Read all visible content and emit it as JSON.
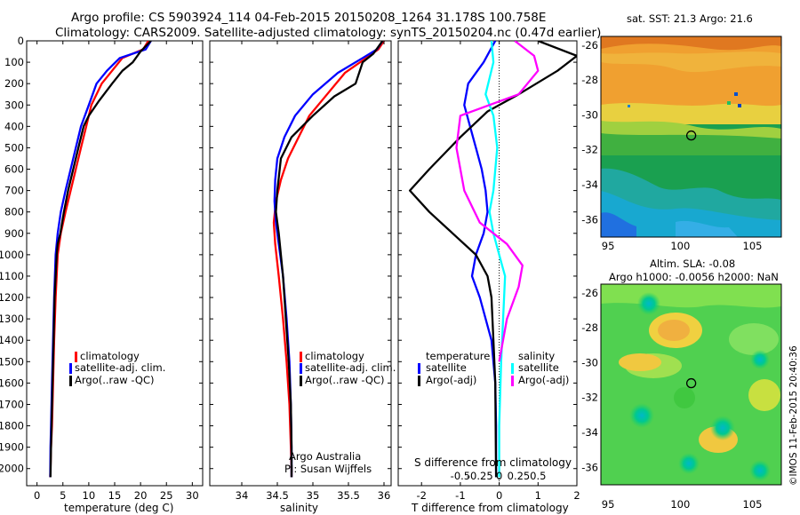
{
  "header": {
    "title_line1": "Argo profile: CS 5903924_114 04-Feb-2015 20150208_1264 31.178S 100.758E",
    "title_line2": "Climatology: CARS2009. Satellite-adjusted climatology: synTS_20150204.nc (0.47d earlier)"
  },
  "colors": {
    "climatology": "#ff0000",
    "satellite": "#0000ff",
    "argo": "#000000",
    "satellite_salinity": "#00ffff",
    "argo_salinity_diff": "#ff00ff"
  },
  "chart_data": [
    {
      "type": "line",
      "id": "temperature",
      "xlabel": "temperature (deg C)",
      "ylabel": "",
      "xlim": [
        -2,
        32
      ],
      "ylim": [
        2080,
        0
      ],
      "xticks": [
        0,
        5,
        10,
        15,
        20,
        25,
        30
      ],
      "yticks": [
        0,
        100,
        200,
        300,
        400,
        500,
        600,
        700,
        800,
        900,
        1000,
        1100,
        1200,
        1300,
        1400,
        1500,
        1600,
        1700,
        1800,
        1900,
        2000
      ],
      "legend": [
        "climatology",
        "satellite-adj. clim.",
        "Argo(..raw -QC)"
      ],
      "series": [
        {
          "name": "climatology",
          "color": "#ff0000",
          "x": [
            21.5,
            20.5,
            16.5,
            14.5,
            12.5,
            10.5,
            9.5,
            8.5,
            7.5,
            6.5,
            5.5,
            4.6,
            4.0,
            3.6,
            3.3,
            3.1,
            2.9,
            2.7,
            2.6,
            2.55
          ],
          "y": [
            0,
            40,
            80,
            140,
            200,
            300,
            400,
            500,
            600,
            700,
            800,
            900,
            1000,
            1200,
            1400,
            1600,
            1800,
            1900,
            2000,
            2040
          ]
        },
        {
          "name": "satellite-adj. clim.",
          "color": "#0000ff",
          "x": [
            22.0,
            21.0,
            16.0,
            13.5,
            11.5,
            10.0,
            8.5,
            7.5,
            6.5,
            5.5,
            4.6,
            4.0,
            3.6,
            3.3,
            3.1,
            2.9,
            2.7,
            2.6,
            2.55
          ],
          "y": [
            0,
            40,
            80,
            140,
            200,
            300,
            400,
            500,
            600,
            700,
            800,
            900,
            1000,
            1200,
            1400,
            1600,
            1800,
            1900,
            2040
          ]
        },
        {
          "name": "Argo(..raw -QC)",
          "color": "#000000",
          "x": [
            22.0,
            20.0,
            18.5,
            16.5,
            14.5,
            12.0,
            10.0,
            9.0,
            8.0,
            7.0,
            6.0,
            5.2,
            4.5,
            4.0,
            3.8,
            3.6,
            3.4,
            3.2,
            3.0,
            2.8,
            2.7,
            2.6
          ],
          "y": [
            0,
            50,
            100,
            140,
            200,
            280,
            350,
            400,
            500,
            600,
            700,
            800,
            900,
            950,
            1000,
            1100,
            1200,
            1400,
            1600,
            1800,
            1900,
            2040
          ]
        }
      ]
    },
    {
      "type": "line",
      "id": "salinity",
      "xlabel": "salinity",
      "ylabel": "",
      "xlim": [
        33.55,
        36.1
      ],
      "ylim": [
        2080,
        0
      ],
      "xticks": [
        34,
        34.5,
        35,
        35.5,
        36
      ],
      "legend": [
        "climatology",
        "satellite-adj. clim.",
        "Argo(..raw -QC)"
      ],
      "annotations": [
        "Argo Australia",
        "PI: Susan Wijffels"
      ],
      "series": [
        {
          "name": "climatology",
          "color": "#ff0000",
          "x": [
            36.0,
            35.92,
            35.75,
            35.45,
            35.2,
            34.95,
            34.8,
            34.65,
            34.55,
            34.48,
            34.45,
            34.47,
            34.52,
            34.58,
            34.63,
            34.67,
            34.69,
            34.7,
            34.7
          ],
          "y": [
            0,
            40,
            80,
            150,
            250,
            350,
            450,
            550,
            650,
            750,
            850,
            950,
            1100,
            1300,
            1500,
            1700,
            1900,
            2000,
            2040
          ]
        },
        {
          "name": "satellite-adj. clim.",
          "color": "#0000ff",
          "x": [
            35.98,
            35.9,
            35.7,
            35.35,
            35.0,
            34.75,
            34.6,
            34.5,
            34.47,
            34.46,
            34.48,
            34.52,
            34.58,
            34.63,
            34.67,
            34.69,
            34.7,
            34.7
          ],
          "y": [
            0,
            40,
            80,
            150,
            250,
            350,
            450,
            550,
            650,
            750,
            850,
            950,
            1100,
            1300,
            1500,
            1700,
            1900,
            2040
          ]
        },
        {
          "name": "Argo(..raw -QC)",
          "color": "#000000",
          "x": [
            35.98,
            35.85,
            35.7,
            35.6,
            35.3,
            35.0,
            34.7,
            34.55,
            34.5,
            34.48,
            34.52,
            34.55,
            34.58,
            34.62,
            34.66,
            34.69,
            34.7,
            34.7
          ],
          "y": [
            0,
            60,
            100,
            200,
            260,
            350,
            450,
            550,
            700,
            800,
            900,
            1000,
            1100,
            1300,
            1500,
            1700,
            1900,
            2040
          ]
        }
      ]
    },
    {
      "type": "line",
      "id": "differences",
      "xlabel": "T difference from climatology",
      "secondary_xlabel": "S difference from climatology",
      "xlim": [
        -2.6,
        2.0
      ],
      "ylim": [
        2080,
        0
      ],
      "xticks": [
        -2,
        -1,
        0,
        1,
        2
      ],
      "secondary_xticks": [
        "-0.5",
        "-0.25",
        "0",
        "0.25",
        "0.5"
      ],
      "legend": {
        "temperature_header": "temperature",
        "salinity_header": "salinity",
        "entries": [
          "satellite",
          "Argo(-adj)",
          "satellite",
          "Argo(-adj)"
        ]
      },
      "series": [
        {
          "name": "temperature satellite",
          "color": "#0000ff",
          "x": [
            -0.1,
            -0.4,
            -0.8,
            -0.9,
            -0.75,
            -0.6,
            -0.45,
            -0.35,
            -0.3,
            -0.4,
            -0.6,
            -0.7,
            -0.5,
            -0.2,
            -0.1,
            -0.08,
            -0.08
          ],
          "y": [
            0,
            100,
            200,
            300,
            400,
            500,
            600,
            700,
            800,
            900,
            1000,
            1100,
            1200,
            1400,
            1600,
            1800,
            2040
          ]
        },
        {
          "name": "temperature Argo(-adj)",
          "color": "#000000",
          "x": [
            1.0,
            2.0,
            1.5,
            0.5,
            -0.3,
            -1.0,
            -1.8,
            -2.3,
            -1.8,
            -1.2,
            -0.6,
            -0.3,
            -0.2,
            -0.15,
            -0.1,
            -0.08
          ],
          "y": [
            0,
            70,
            140,
            250,
            330,
            450,
            600,
            700,
            800,
            900,
            1000,
            1100,
            1200,
            1400,
            1600,
            2040
          ]
        },
        {
          "name": "salinity satellite",
          "color": "#00ffff",
          "x": [
            -0.2,
            -0.15,
            -0.35,
            -0.15,
            -0.05,
            -0.15,
            -0.25,
            -0.15,
            0.0,
            0.15,
            0.1,
            0.05,
            0.0,
            0.0
          ],
          "y": [
            0,
            100,
            250,
            350,
            500,
            700,
            800,
            900,
            1000,
            1100,
            1300,
            1500,
            1800,
            2040
          ]
        },
        {
          "name": "salinity Argo(-adj)",
          "color": "#ff00ff",
          "x": [
            0.4,
            0.9,
            1.0,
            0.5,
            -1.0,
            -1.1,
            -0.9,
            -0.5,
            0.2,
            0.6,
            0.5,
            0.2,
            0.0
          ],
          "y": [
            0,
            70,
            140,
            250,
            350,
            500,
            700,
            850,
            950,
            1050,
            1150,
            1300,
            1500
          ]
        }
      ]
    },
    {
      "type": "heatmap",
      "id": "sst-map",
      "title": "sat. SST: 21.3 Argo: 21.6",
      "xticks": [
        95,
        100,
        105
      ],
      "yticks": [
        -26,
        -28,
        -30,
        -32,
        -34,
        -36
      ],
      "xlim": [
        94.5,
        107
      ],
      "ylim": [
        -37,
        -25.5
      ],
      "marker": {
        "lon": 100.758,
        "lat": -31.178
      }
    },
    {
      "type": "heatmap",
      "id": "sla-map",
      "title_line1": "Altim. SLA: -0.08",
      "title_line2": "Argo h1000: -0.0056 h2000: NaN",
      "xticks": [
        95,
        100,
        105
      ],
      "yticks": [
        -26,
        -28,
        -30,
        -32,
        -34,
        -36
      ],
      "xlim": [
        94.5,
        107
      ],
      "ylim": [
        -37,
        -25.5
      ],
      "marker": {
        "lon": 100.758,
        "lat": -31.178
      }
    }
  ],
  "credit": "©IMOS 11-Feb-2015 20:40:36"
}
